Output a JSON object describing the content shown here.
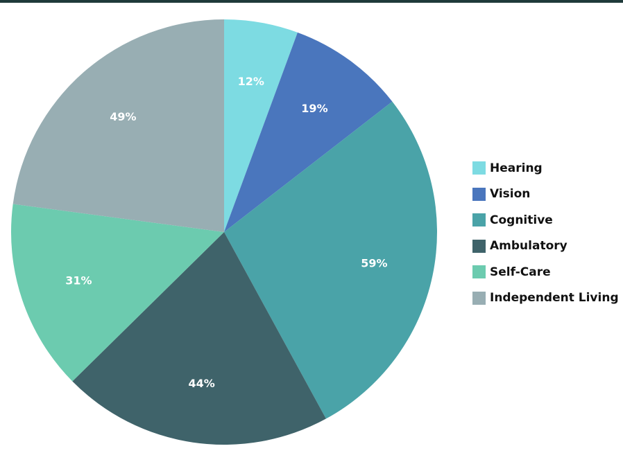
{
  "chart_data": {
    "type": "pie",
    "title": "",
    "categories": [
      "Hearing",
      "Vision",
      "Cognitive",
      "Ambulatory",
      "Self-Care",
      "Independent Living"
    ],
    "values": [
      12,
      19,
      59,
      44,
      31,
      49
    ],
    "value_labels": [
      "12%",
      "19%",
      "59%",
      "44%",
      "31%",
      "49%"
    ],
    "colors": [
      "#7ddbe2",
      "#4a76bd",
      "#4aa3a8",
      "#3f636a",
      "#6ccbaf",
      "#98aeb3"
    ],
    "start_angle": "12 o'clock",
    "direction": "clockwise",
    "legend_placement": "right"
  },
  "legend": {
    "items": [
      {
        "label": "Hearing"
      },
      {
        "label": "Vision"
      },
      {
        "label": "Cognitive"
      },
      {
        "label": "Ambulatory"
      },
      {
        "label": "Self-Care"
      },
      {
        "label": "Independent Living"
      }
    ]
  }
}
